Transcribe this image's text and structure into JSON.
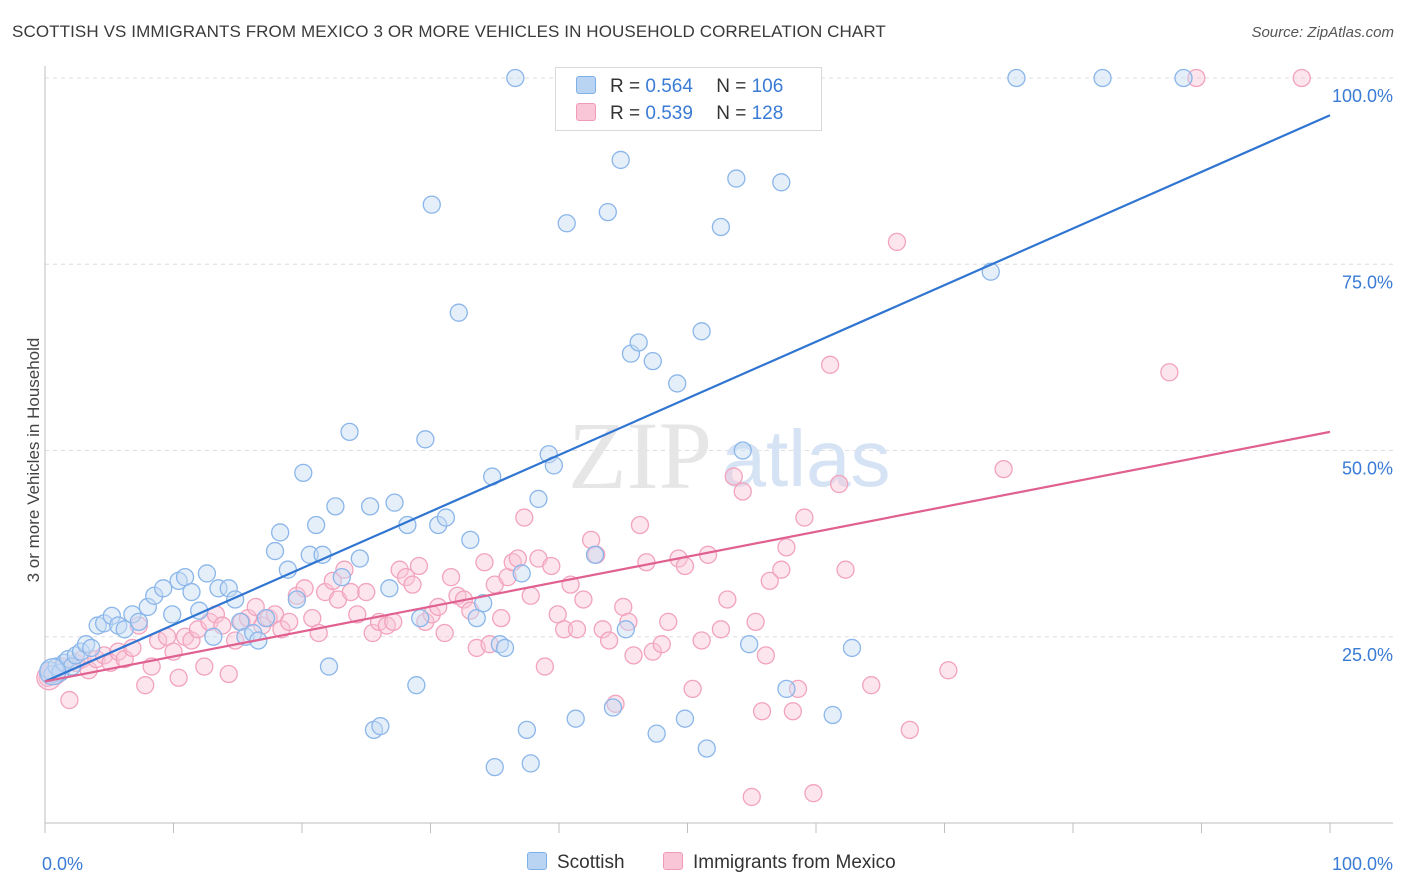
{
  "title": "SCOTTISH VS IMMIGRANTS FROM MEXICO 3 OR MORE VEHICLES IN HOUSEHOLD CORRELATION CHART",
  "source": "Source: ZipAtlas.com",
  "watermark": {
    "zip": "ZIP",
    "atlas": "atlas"
  },
  "legend_stats": [
    {
      "r_label": "R =",
      "r_value": "0.564",
      "n_label": "N =",
      "n_value": "106",
      "color": "#7fb0e8",
      "fill": "#b9d3f3"
    },
    {
      "r_label": "R =",
      "r_value": "0.539",
      "n_label": "N =",
      "n_value": "128",
      "color": "#f09ab5",
      "fill": "#f8c6d6"
    }
  ],
  "colors": {
    "blue": "#2f75d1",
    "pink": "#e0608f",
    "blue_point": "#8bb6ea",
    "pink_point": "#f2a3bd",
    "axis_text": "#3a7bd5",
    "grid": "#dddddd"
  },
  "chart_data": {
    "type": "scatter",
    "title": "SCOTTISH VS IMMIGRANTS FROM MEXICO 3 OR MORE VEHICLES IN HOUSEHOLD CORRELATION CHART",
    "xlabel": "",
    "ylabel": "3 or more Vehicles in Household",
    "xlim": [
      0,
      100
    ],
    "ylim": [
      0,
      100
    ],
    "x_tick_labels": [
      "0.0%",
      "100.0%"
    ],
    "y_tick_labels": [
      "25.0%",
      "50.0%",
      "75.0%",
      "100.0%"
    ],
    "y_ticks": [
      25,
      50,
      75,
      100
    ],
    "grid": true,
    "legend": "top-center and bottom",
    "series": [
      {
        "name": "Scottish",
        "trend": {
          "x": [
            0,
            100
          ],
          "y": [
            19,
            95
          ]
        },
        "points": [
          [
            0.3,
            20.5
          ],
          [
            0.6,
            20
          ],
          [
            0.9,
            21
          ],
          [
            1.2,
            20.2
          ],
          [
            1.5,
            21.5
          ],
          [
            1.8,
            22
          ],
          [
            2.1,
            21
          ],
          [
            2.4,
            22.5
          ],
          [
            2.8,
            23
          ],
          [
            3.2,
            24
          ],
          [
            3.6,
            23.5
          ],
          [
            4.1,
            26.5
          ],
          [
            4.6,
            26.8
          ],
          [
            5.2,
            27.8
          ],
          [
            5.7,
            26.5
          ],
          [
            6.2,
            26
          ],
          [
            6.8,
            28
          ],
          [
            7.3,
            27
          ],
          [
            8,
            29
          ],
          [
            8.5,
            30.5
          ],
          [
            9.2,
            31.5
          ],
          [
            9.9,
            28
          ],
          [
            10.4,
            32.5
          ],
          [
            10.9,
            33
          ],
          [
            11.4,
            31
          ],
          [
            12,
            28.5
          ],
          [
            12.6,
            33.5
          ],
          [
            13.1,
            25
          ],
          [
            13.5,
            31.5
          ],
          [
            14.3,
            31.5
          ],
          [
            14.8,
            30
          ],
          [
            15.2,
            27
          ],
          [
            15.6,
            25
          ],
          [
            16.2,
            25.5
          ],
          [
            16.6,
            24.5
          ],
          [
            17.2,
            27.5
          ],
          [
            17.9,
            36.5
          ],
          [
            18.3,
            39
          ],
          [
            18.9,
            34
          ],
          [
            19.6,
            30
          ],
          [
            20.1,
            47
          ],
          [
            20.6,
            36
          ],
          [
            21.1,
            40
          ],
          [
            21.6,
            36
          ],
          [
            22.1,
            21
          ],
          [
            22.6,
            42.5
          ],
          [
            23.1,
            33
          ],
          [
            23.7,
            52.5
          ],
          [
            24.5,
            35.5
          ],
          [
            25.3,
            42.5
          ],
          [
            25.6,
            12.5
          ],
          [
            26.1,
            13
          ],
          [
            26.8,
            31.5
          ],
          [
            27.2,
            43
          ],
          [
            28.2,
            40
          ],
          [
            28.9,
            18.5
          ],
          [
            29.2,
            27.5
          ],
          [
            29.6,
            51.5
          ],
          [
            30.1,
            83
          ],
          [
            30.6,
            40
          ],
          [
            31.2,
            41
          ],
          [
            32.2,
            68.5
          ],
          [
            33.1,
            38
          ],
          [
            33.6,
            27.5
          ],
          [
            34.1,
            29.5
          ],
          [
            34.8,
            46.5
          ],
          [
            35,
            7.5
          ],
          [
            35.4,
            24
          ],
          [
            35.8,
            23.5
          ],
          [
            36.6,
            100
          ],
          [
            37.1,
            33.5
          ],
          [
            37.5,
            12.5
          ],
          [
            37.8,
            8
          ],
          [
            38.4,
            43.5
          ],
          [
            39.2,
            49.5
          ],
          [
            39.6,
            48
          ],
          [
            40.6,
            80.5
          ],
          [
            41.3,
            14
          ],
          [
            41.8,
            100
          ],
          [
            42.8,
            36
          ],
          [
            43.8,
            82
          ],
          [
            44.2,
            15.5
          ],
          [
            44.8,
            89
          ],
          [
            45.2,
            26
          ],
          [
            45.6,
            63
          ],
          [
            46.2,
            64.5
          ],
          [
            47.3,
            62
          ],
          [
            47.6,
            12
          ],
          [
            47.9,
            100
          ],
          [
            49.2,
            59
          ],
          [
            49.8,
            14
          ],
          [
            51.1,
            66
          ],
          [
            51.5,
            10
          ],
          [
            52.6,
            80
          ],
          [
            53.8,
            86.5
          ],
          [
            54.3,
            50
          ],
          [
            54.8,
            24
          ],
          [
            55.3,
            100
          ],
          [
            57.3,
            86
          ],
          [
            57.7,
            18
          ],
          [
            58.6,
            100
          ],
          [
            61.3,
            14.5
          ],
          [
            62.8,
            23.5
          ],
          [
            73.6,
            74
          ],
          [
            75.6,
            100
          ],
          [
            82.3,
            100
          ],
          [
            88.6,
            100
          ]
        ]
      },
      {
        "name": "Immigrants from Mexico",
        "trend": {
          "x": [
            0,
            100
          ],
          "y": [
            19,
            52.5
          ]
        },
        "points": [
          [
            0.2,
            19.5
          ],
          [
            0.5,
            20.5
          ],
          [
            0.9,
            19.8
          ],
          [
            1.4,
            21
          ],
          [
            1.9,
            16.5
          ],
          [
            2.4,
            21.5
          ],
          [
            2.9,
            22
          ],
          [
            3.4,
            20.5
          ],
          [
            4,
            22
          ],
          [
            4.6,
            22.5
          ],
          [
            5.1,
            21.5
          ],
          [
            5.7,
            23
          ],
          [
            6.2,
            22
          ],
          [
            6.8,
            23.5
          ],
          [
            7.3,
            26.5
          ],
          [
            7.8,
            18.5
          ],
          [
            8.3,
            21
          ],
          [
            8.8,
            24.5
          ],
          [
            9.5,
            25
          ],
          [
            10,
            23
          ],
          [
            10.4,
            19.5
          ],
          [
            10.9,
            25
          ],
          [
            11.4,
            24.5
          ],
          [
            11.9,
            26
          ],
          [
            12.4,
            21
          ],
          [
            12.8,
            27
          ],
          [
            13.3,
            28
          ],
          [
            13.8,
            26.5
          ],
          [
            14.3,
            20
          ],
          [
            14.8,
            24.5
          ],
          [
            15.3,
            27
          ],
          [
            15.8,
            27.5
          ],
          [
            16.4,
            29
          ],
          [
            16.9,
            26.5
          ],
          [
            17.4,
            27.5
          ],
          [
            17.9,
            28
          ],
          [
            18.4,
            26
          ],
          [
            19,
            27
          ],
          [
            19.6,
            30.5
          ],
          [
            20.2,
            31.5
          ],
          [
            20.8,
            27.5
          ],
          [
            21.3,
            25.5
          ],
          [
            21.8,
            31
          ],
          [
            22.4,
            32.5
          ],
          [
            22.8,
            30
          ],
          [
            23.3,
            34
          ],
          [
            23.8,
            31
          ],
          [
            24.3,
            28
          ],
          [
            25,
            31
          ],
          [
            25.5,
            25.5
          ],
          [
            26,
            27
          ],
          [
            26.6,
            26.5
          ],
          [
            27.1,
            27
          ],
          [
            27.6,
            34
          ],
          [
            28.1,
            33
          ],
          [
            28.6,
            32
          ],
          [
            29.1,
            34.5
          ],
          [
            29.6,
            27
          ],
          [
            30.1,
            28
          ],
          [
            30.6,
            29
          ],
          [
            31.1,
            25.5
          ],
          [
            31.6,
            33
          ],
          [
            32.1,
            30.5
          ],
          [
            32.6,
            30
          ],
          [
            33.1,
            28.5
          ],
          [
            33.6,
            23.5
          ],
          [
            34.2,
            35
          ],
          [
            34.6,
            24
          ],
          [
            35,
            32
          ],
          [
            35.5,
            27.5
          ],
          [
            36,
            33
          ],
          [
            36.4,
            35
          ],
          [
            36.8,
            35.5
          ],
          [
            37.3,
            41
          ],
          [
            37.8,
            30.5
          ],
          [
            38.4,
            35.5
          ],
          [
            38.9,
            21
          ],
          [
            39.4,
            34.5
          ],
          [
            39.9,
            28
          ],
          [
            40.4,
            26
          ],
          [
            40.9,
            32
          ],
          [
            41.4,
            26
          ],
          [
            41.9,
            30
          ],
          [
            42.5,
            38
          ],
          [
            42.9,
            36
          ],
          [
            43.4,
            26
          ],
          [
            43.9,
            24.5
          ],
          [
            44.4,
            16
          ],
          [
            45,
            29
          ],
          [
            45.4,
            27
          ],
          [
            45.8,
            22.5
          ],
          [
            46.3,
            40
          ],
          [
            46.8,
            35
          ],
          [
            47.3,
            23
          ],
          [
            48,
            24
          ],
          [
            48.5,
            27
          ],
          [
            49.3,
            35.5
          ],
          [
            49.8,
            34.5
          ],
          [
            50.4,
            18
          ],
          [
            51.1,
            24.5
          ],
          [
            51.6,
            36
          ],
          [
            52.6,
            26
          ],
          [
            53.1,
            30
          ],
          [
            53.6,
            46.5
          ],
          [
            54.3,
            44.5
          ],
          [
            55.3,
            27
          ],
          [
            55.8,
            15
          ],
          [
            56.4,
            32.5
          ],
          [
            57.3,
            34
          ],
          [
            57.7,
            37
          ],
          [
            58.6,
            18
          ],
          [
            59.1,
            41
          ],
          [
            61.1,
            61.5
          ],
          [
            61.8,
            45.5
          ],
          [
            62.3,
            34
          ],
          [
            64.3,
            18.5
          ],
          [
            66.3,
            78
          ],
          [
            67.3,
            12.5
          ],
          [
            70.3,
            20.5
          ],
          [
            74.6,
            47.5
          ],
          [
            89.6,
            100
          ],
          [
            97.8,
            100
          ],
          [
            87.5,
            60.5
          ],
          [
            58.2,
            15
          ],
          [
            56.1,
            22.5
          ],
          [
            55,
            3.5
          ],
          [
            59.8,
            4
          ]
        ]
      }
    ]
  },
  "bottom_legend": [
    "Scottish",
    "Immigrants from Mexico"
  ]
}
